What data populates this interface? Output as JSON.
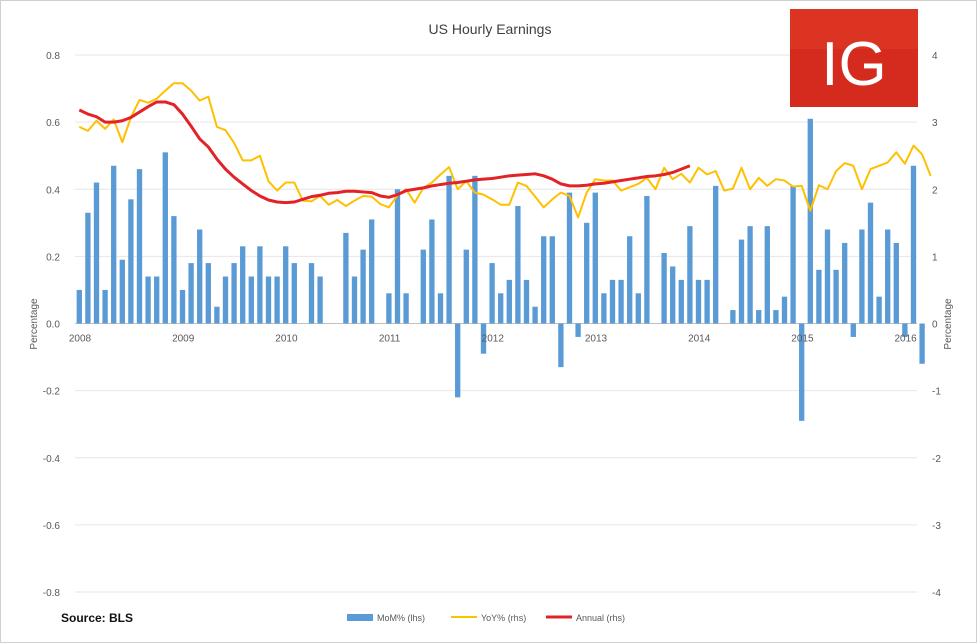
{
  "chart_data": {
    "type": "bar+line",
    "title": "US Hourly Earnings",
    "source": "Source: BLS",
    "logo_text": "IG",
    "logo_color": "#d42b1e",
    "ylabel_left": "Percentage",
    "ylabel_right": "Percentage",
    "ylim_left": [
      -0.8,
      0.8
    ],
    "ylim_right": [
      -4,
      4
    ],
    "yticks_left": [
      "0.8",
      "0.6",
      "0.4",
      "0.2",
      "0.0",
      "-0.2",
      "-0.4",
      "-0.6",
      "-0.8"
    ],
    "yticks_right": [
      "4",
      "3",
      "2",
      "1",
      "0",
      "-1",
      "-2",
      "-3",
      "-4"
    ],
    "xticks": [
      "2008",
      "2009",
      "2010",
      "2011",
      "2012",
      "2013",
      "2014",
      "2015",
      "2016"
    ],
    "x_start": "2008-01",
    "gridlines": true,
    "legend_position": "bottom",
    "series": [
      {
        "name": "MoM% (lhs)",
        "type": "bar",
        "axis": "left",
        "color": "#5b9bd5",
        "values": [
          0.1,
          0.33,
          0.42,
          0.1,
          0.47,
          0.19,
          0.37,
          0.46,
          0.14,
          0.14,
          0.51,
          0.32,
          0.1,
          0.18,
          0.28,
          0.18,
          0.05,
          0.14,
          0.18,
          0.23,
          0.14,
          0.23,
          0.14,
          0.14,
          0.23,
          0.18,
          0.0,
          0.18,
          0.14,
          0.0,
          0.0,
          0.27,
          0.14,
          0.22,
          0.31,
          0.0,
          0.09,
          0.4,
          0.09,
          0.0,
          0.22,
          0.31,
          0.09,
          0.44,
          -0.22,
          0.22,
          0.44,
          -0.09,
          0.18,
          0.09,
          0.13,
          0.35,
          0.13,
          0.05,
          0.26,
          0.26,
          -0.13,
          0.39,
          -0.04,
          0.3,
          0.39,
          0.09,
          0.13,
          0.13,
          0.26,
          0.09,
          0.38,
          0.0,
          0.21,
          0.17,
          0.13,
          0.29,
          0.13,
          0.13,
          0.41,
          0.0,
          0.04,
          0.25,
          0.29,
          0.04,
          0.29,
          0.04,
          0.08,
          0.41,
          -0.29,
          0.61,
          0.16,
          0.28,
          0.16,
          0.24,
          -0.04,
          0.28,
          0.36,
          0.08,
          0.28,
          0.24,
          -0.04,
          0.47,
          -0.12
        ]
      },
      {
        "name": "YoY% (rhs)",
        "type": "line",
        "axis": "right",
        "color": "#ffc000",
        "values": [
          2.93,
          2.87,
          3.02,
          2.9,
          3.04,
          2.7,
          3.07,
          3.33,
          3.29,
          3.35,
          3.47,
          3.58,
          3.58,
          3.47,
          3.32,
          3.38,
          2.93,
          2.88,
          2.69,
          2.43,
          2.43,
          2.5,
          2.12,
          1.98,
          2.1,
          2.1,
          1.83,
          1.82,
          1.9,
          1.77,
          1.84,
          1.75,
          1.83,
          1.9,
          1.89,
          1.78,
          1.73,
          1.91,
          2.0,
          1.8,
          2.02,
          2.1,
          2.22,
          2.33,
          2.0,
          2.12,
          1.95,
          1.92,
          1.85,
          1.77,
          1.77,
          2.1,
          2.05,
          1.89,
          1.73,
          1.85,
          1.95,
          1.9,
          1.58,
          1.95,
          2.15,
          2.13,
          2.13,
          1.98,
          2.03,
          2.08,
          2.17,
          2.0,
          2.32,
          2.15,
          2.23,
          2.1,
          2.32,
          2.22,
          2.27,
          1.98,
          2.01,
          2.32,
          2.0,
          2.17,
          2.05,
          2.15,
          2.13,
          2.04,
          2.05,
          1.68,
          2.06,
          2.0,
          2.27,
          2.39,
          2.35,
          2.0,
          2.3,
          2.35,
          2.4,
          2.55,
          2.38,
          2.65,
          2.52,
          2.2
        ]
      },
      {
        "name": "Annual (rhs)",
        "type": "line",
        "axis": "right",
        "color": "#e32227",
        "values": [
          3.18,
          3.12,
          3.08,
          3.0,
          3.0,
          3.02,
          3.07,
          3.15,
          3.23,
          3.3,
          3.3,
          3.26,
          3.12,
          2.94,
          2.75,
          2.63,
          2.45,
          2.3,
          2.18,
          2.08,
          1.98,
          1.9,
          1.84,
          1.81,
          1.8,
          1.81,
          1.85,
          1.89,
          1.91,
          1.94,
          1.95,
          1.97,
          1.97,
          1.96,
          1.95,
          1.9,
          1.88,
          1.92,
          1.98,
          2.0,
          2.02,
          2.05,
          2.07,
          2.09,
          2.1,
          2.12,
          2.14,
          2.15,
          2.16,
          2.18,
          2.2,
          2.21,
          2.22,
          2.23,
          2.2,
          2.15,
          2.08,
          2.05,
          2.05,
          2.06,
          2.08,
          2.09,
          2.11,
          2.13,
          2.15,
          2.17,
          2.19,
          2.2,
          2.22,
          2.25,
          2.3,
          2.35
        ]
      }
    ]
  }
}
